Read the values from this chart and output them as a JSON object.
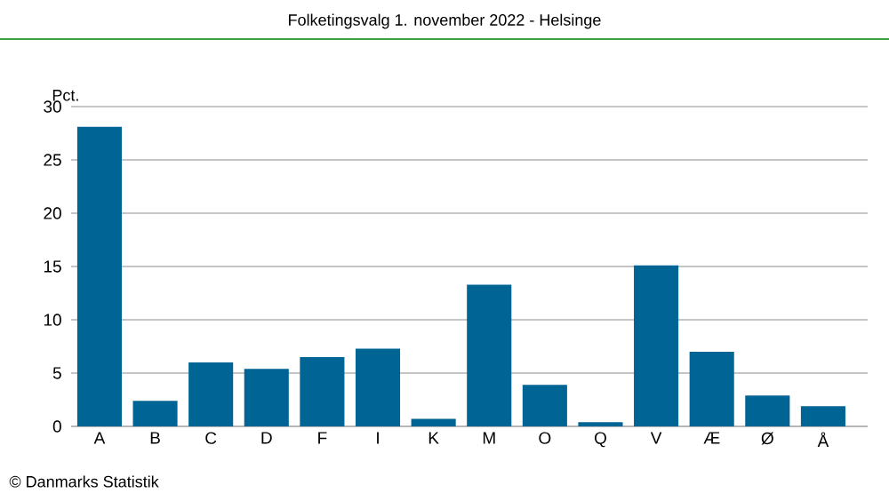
{
  "chart_data": {
    "type": "bar",
    "title": "Folketingsvalg 1. november 2022 - Helsinge",
    "ylabel": "Pct.",
    "categories": [
      "A",
      "B",
      "C",
      "D",
      "F",
      "I",
      "K",
      "M",
      "O",
      "Q",
      "V",
      "Æ",
      "Ø",
      "Å"
    ],
    "values": [
      28.1,
      2.4,
      6.0,
      5.4,
      6.5,
      7.3,
      0.7,
      13.3,
      3.9,
      0.4,
      15.1,
      7.0,
      2.9,
      1.9
    ],
    "color": "#006494",
    "ylim": [
      0,
      30
    ],
    "yticks": [
      0,
      5,
      10,
      15,
      20,
      25,
      30
    ],
    "grid": "y",
    "annotations": [
      "© Danmarks Statistik"
    ]
  }
}
